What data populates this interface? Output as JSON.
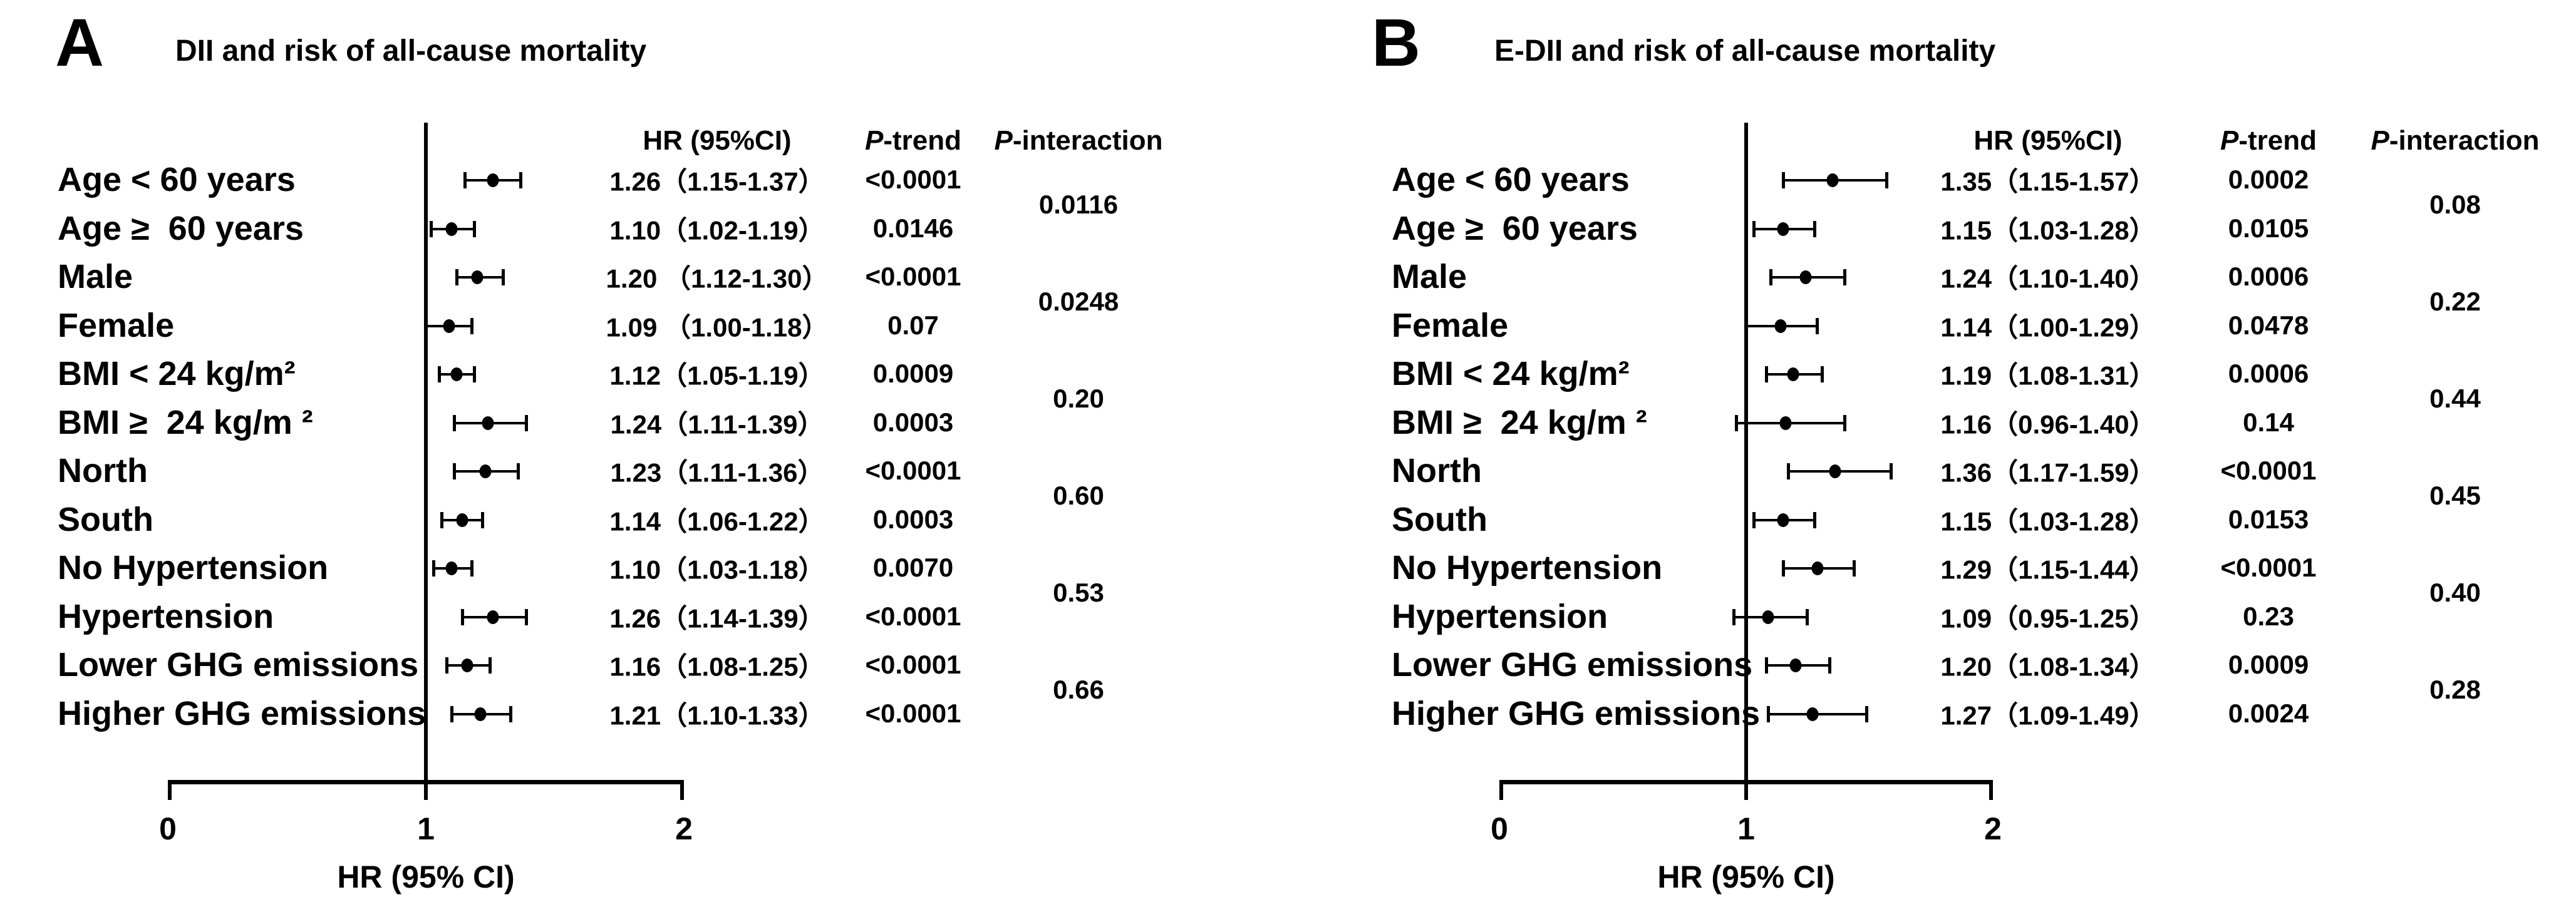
{
  "colors": {
    "foreground": "#000000",
    "background": "#ffffff"
  },
  "chart_data": [
    {
      "type": "forest",
      "panel_label": "A",
      "title": "DII and risk of all-cause mortality",
      "columns": {
        "hr_header": "HR (95%CI)",
        "p": "P",
        "trend_suffix": "-trend",
        "interaction_suffix": "-interaction"
      },
      "xlabel": "HR (95% CI)",
      "xlim": [
        0,
        2
      ],
      "xticks": [
        "0",
        "1",
        "2"
      ],
      "ref_line_x": 1,
      "rows": [
        {
          "label": "Age < 60 years",
          "hr": 1.26,
          "ci_low": 1.15,
          "ci_high": 1.37,
          "hr_ci_text": "1.26（1.15-1.37）",
          "p_trend": "<0.0001"
        },
        {
          "label": "Age ≥  60 years",
          "hr": 1.1,
          "ci_low": 1.02,
          "ci_high": 1.19,
          "hr_ci_text": "1.10（1.02-1.19）",
          "p_trend": "0.0146"
        },
        {
          "label": "Male",
          "hr": 1.2,
          "ci_low": 1.12,
          "ci_high": 1.3,
          "hr_ci_text": "1.20 （1.12-1.30）",
          "p_trend": "<0.0001"
        },
        {
          "label": "Female",
          "hr": 1.09,
          "ci_low": 1.0,
          "ci_high": 1.18,
          "hr_ci_text": "1.09 （1.00-1.18）",
          "p_trend": "0.07"
        },
        {
          "label": "BMI < 24 kg/m²",
          "hr": 1.12,
          "ci_low": 1.05,
          "ci_high": 1.19,
          "hr_ci_text": "1.12（1.05-1.19）",
          "p_trend": "0.0009"
        },
        {
          "label": "BMI ≥  24 kg/m ²",
          "hr": 1.24,
          "ci_low": 1.11,
          "ci_high": 1.39,
          "hr_ci_text": "1.24（1.11-1.39）",
          "p_trend": "0.0003"
        },
        {
          "label": "North",
          "hr": 1.23,
          "ci_low": 1.11,
          "ci_high": 1.36,
          "hr_ci_text": "1.23（1.11-1.36）",
          "p_trend": "<0.0001"
        },
        {
          "label": "South",
          "hr": 1.14,
          "ci_low": 1.06,
          "ci_high": 1.22,
          "hr_ci_text": "1.14（1.06-1.22）",
          "p_trend": "0.0003"
        },
        {
          "label": "No Hypertension",
          "hr": 1.1,
          "ci_low": 1.03,
          "ci_high": 1.18,
          "hr_ci_text": "1.10（1.03-1.18）",
          "p_trend": "0.0070"
        },
        {
          "label": "Hypertension",
          "hr": 1.26,
          "ci_low": 1.14,
          "ci_high": 1.39,
          "hr_ci_text": "1.26（1.14-1.39）",
          "p_trend": "<0.0001"
        },
        {
          "label": "Lower GHG emissions",
          "hr": 1.16,
          "ci_low": 1.08,
          "ci_high": 1.25,
          "hr_ci_text": "1.16（1.08-1.25）",
          "p_trend": "<0.0001"
        },
        {
          "label": "Higher GHG emissions",
          "hr": 1.21,
          "ci_low": 1.1,
          "ci_high": 1.33,
          "hr_ci_text": "1.21（1.10-1.33）",
          "p_trend": "<0.0001"
        }
      ],
      "p_interaction": [
        "0.0116",
        "0.0248",
        "0.20",
        "0.60",
        "0.53",
        "0.66"
      ]
    },
    {
      "type": "forest",
      "panel_label": "B",
      "title": "E-DII and risk of all-cause mortality",
      "columns": {
        "hr_header": "HR (95%CI)",
        "p": "P",
        "trend_suffix": "-trend",
        "interaction_suffix": "-interaction"
      },
      "xlabel": "HR (95% CI)",
      "xlim": [
        0,
        2
      ],
      "xticks": [
        "0",
        "1",
        "2"
      ],
      "ref_line_x": 1,
      "rows": [
        {
          "label": "Age < 60 years",
          "hr": 1.35,
          "ci_low": 1.15,
          "ci_high": 1.57,
          "hr_ci_text": "1.35（1.15-1.57）",
          "p_trend": "0.0002"
        },
        {
          "label": "Age ≥  60 years",
          "hr": 1.15,
          "ci_low": 1.03,
          "ci_high": 1.28,
          "hr_ci_text": "1.15（1.03-1.28）",
          "p_trend": "0.0105"
        },
        {
          "label": "Male",
          "hr": 1.24,
          "ci_low": 1.1,
          "ci_high": 1.4,
          "hr_ci_text": "1.24（1.10-1.40）",
          "p_trend": "0.0006"
        },
        {
          "label": "Female",
          "hr": 1.14,
          "ci_low": 1.0,
          "ci_high": 1.29,
          "hr_ci_text": "1.14（1.00-1.29）",
          "p_trend": "0.0478"
        },
        {
          "label": "BMI < 24 kg/m²",
          "hr": 1.19,
          "ci_low": 1.08,
          "ci_high": 1.31,
          "hr_ci_text": "1.19（1.08-1.31）",
          "p_trend": "0.0006"
        },
        {
          "label": "BMI ≥  24 kg/m ²",
          "hr": 1.16,
          "ci_low": 0.96,
          "ci_high": 1.4,
          "hr_ci_text": "1.16（0.96-1.40）",
          "p_trend": "0.14"
        },
        {
          "label": "North",
          "hr": 1.36,
          "ci_low": 1.17,
          "ci_high": 1.59,
          "hr_ci_text": "1.36（1.17-1.59）",
          "p_trend": "<0.0001"
        },
        {
          "label": "South",
          "hr": 1.15,
          "ci_low": 1.03,
          "ci_high": 1.28,
          "hr_ci_text": "1.15（1.03-1.28）",
          "p_trend": "0.0153"
        },
        {
          "label": "No Hypertension",
          "hr": 1.29,
          "ci_low": 1.15,
          "ci_high": 1.44,
          "hr_ci_text": "1.29（1.15-1.44）",
          "p_trend": "<0.0001"
        },
        {
          "label": "Hypertension",
          "hr": 1.09,
          "ci_low": 0.95,
          "ci_high": 1.25,
          "hr_ci_text": "1.09（0.95-1.25）",
          "p_trend": "0.23"
        },
        {
          "label": "Lower GHG emissions",
          "hr": 1.2,
          "ci_low": 1.08,
          "ci_high": 1.34,
          "hr_ci_text": "1.20（1.08-1.34）",
          "p_trend": "0.0009"
        },
        {
          "label": "Higher GHG emissions",
          "hr": 1.27,
          "ci_low": 1.09,
          "ci_high": 1.49,
          "hr_ci_text": "1.27（1.09-1.49）",
          "p_trend": "0.0024"
        }
      ],
      "p_interaction": [
        "0.08",
        "0.22",
        "0.44",
        "0.45",
        "0.40",
        "0.28"
      ]
    }
  ]
}
